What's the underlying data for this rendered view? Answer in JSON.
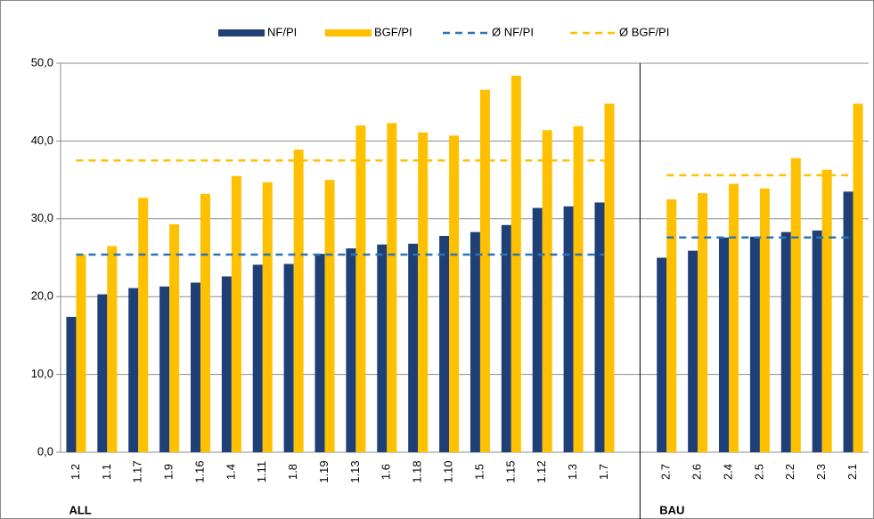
{
  "chart_data": {
    "type": "bar",
    "categories": [
      "1.2",
      "1.1",
      "1.17",
      "1.9",
      "1.16",
      "1.4",
      "1.11",
      "1.8",
      "1.19",
      "1.13",
      "1.6",
      "1.18",
      "1.10",
      "1.5",
      "1.15",
      "1.12",
      "1.3",
      "1.7",
      null,
      "2.7",
      "2.6",
      "2.4",
      "2.5",
      "2.2",
      "2.3",
      "2.1"
    ],
    "series": [
      {
        "name": "NF/PI",
        "type": "bar",
        "color": "#1f3f77",
        "values": [
          17.4,
          20.3,
          21.1,
          21.3,
          21.8,
          22.6,
          24.1,
          24.2,
          25.5,
          26.2,
          26.7,
          26.8,
          27.8,
          28.3,
          29.2,
          31.4,
          31.6,
          32.1,
          null,
          25.0,
          25.9,
          27.6,
          27.7,
          28.3,
          28.5,
          33.5
        ]
      },
      {
        "name": "BGF/PI",
        "type": "bar",
        "color": "#ffc000",
        "values": [
          25.4,
          26.5,
          32.7,
          29.3,
          33.2,
          35.5,
          34.7,
          38.9,
          35.0,
          42.0,
          42.3,
          41.1,
          40.7,
          46.6,
          48.4,
          41.4,
          41.9,
          44.8,
          null,
          32.5,
          33.3,
          34.5,
          33.9,
          37.8,
          36.3,
          44.8
        ]
      },
      {
        "name": "Ø NF/PI",
        "type": "line",
        "dashed": true,
        "color": "#2e75b6",
        "values": [
          25.4,
          25.4,
          25.4,
          25.4,
          25.4,
          25.4,
          25.4,
          25.4,
          25.4,
          25.4,
          25.4,
          25.4,
          25.4,
          25.4,
          25.4,
          25.4,
          25.4,
          25.4,
          null,
          27.6,
          27.6,
          27.6,
          27.6,
          27.6,
          27.6,
          27.6
        ]
      },
      {
        "name": "Ø BGF/PI",
        "type": "line",
        "dashed": true,
        "color": "#ffc000",
        "values": [
          37.5,
          37.5,
          37.5,
          37.5,
          37.5,
          37.5,
          37.5,
          37.5,
          37.5,
          37.5,
          37.5,
          37.5,
          37.5,
          37.5,
          37.5,
          37.5,
          37.5,
          37.5,
          null,
          35.6,
          35.6,
          35.6,
          35.6,
          35.6,
          35.6,
          35.6
        ]
      }
    ],
    "annotations": [
      "ALL",
      "BAU"
    ],
    "ylim": [
      0,
      50
    ],
    "yticks": [
      {
        "value": 0,
        "label": "0,0"
      },
      {
        "value": 10,
        "label": "10,0"
      },
      {
        "value": 20,
        "label": "20,0"
      },
      {
        "value": 30,
        "label": "30,0"
      },
      {
        "value": 40,
        "label": "40,0"
      },
      {
        "value": 50,
        "label": "50,0"
      }
    ],
    "grid": true,
    "legend": "top"
  }
}
